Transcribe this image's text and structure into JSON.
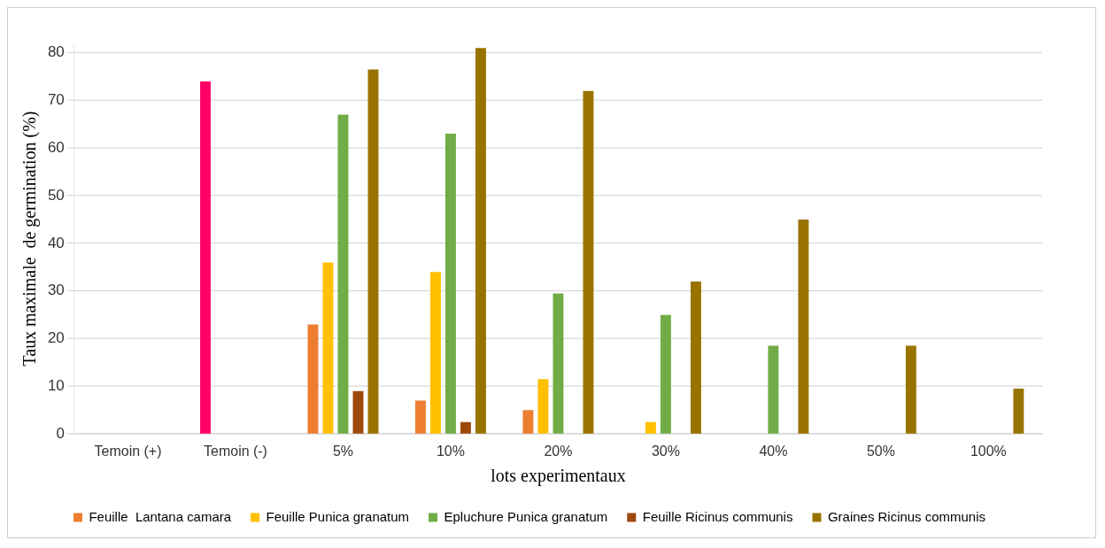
{
  "chart_data": {
    "type": "bar",
    "xlabel": "lots experimentaux",
    "ylabel": "Taux maximale  de germination (%)",
    "categories": [
      "Temoin (+)",
      "Temoin (-)",
      "5%",
      "10%",
      "20%",
      "30%",
      "40%",
      "50%",
      "100%"
    ],
    "series": [
      {
        "name": "Feuille  Lantana camara",
        "color": "#ed7d31",
        "colors": [
          "#ed7d31",
          "#ff0066",
          "#ed7d31",
          "#ed7d31",
          "#ed7d31",
          "#ed7d31",
          "#ed7d31",
          "#ed7d31",
          "#ed7d31"
        ],
        "values": [
          0,
          74,
          23,
          7,
          5,
          0,
          0,
          0,
          0
        ]
      },
      {
        "name": "Feuille Punica granatum",
        "color": "#ffc000",
        "values": [
          null,
          null,
          36,
          34,
          11.5,
          2.5,
          0,
          0,
          0
        ]
      },
      {
        "name": "Epluchure Punica granatum",
        "color": "#70ad47",
        "values": [
          null,
          null,
          67,
          63,
          29.5,
          25,
          18.5,
          0,
          0
        ]
      },
      {
        "name": "Feuille Ricinus communis",
        "color": "#9e480e",
        "values": [
          null,
          null,
          9,
          2.5,
          0,
          0,
          0,
          0,
          0
        ]
      },
      {
        "name": "Graines Ricinus communis",
        "color": "#997300",
        "values": [
          null,
          null,
          76.5,
          81,
          72,
          32,
          45,
          18.5,
          9.5
        ]
      }
    ],
    "ylim": [
      0,
      82
    ],
    "yticks": [
      0,
      10,
      20,
      30,
      40,
      50,
      60,
      70,
      80
    ],
    "grid": "y",
    "legend": "bottom"
  }
}
